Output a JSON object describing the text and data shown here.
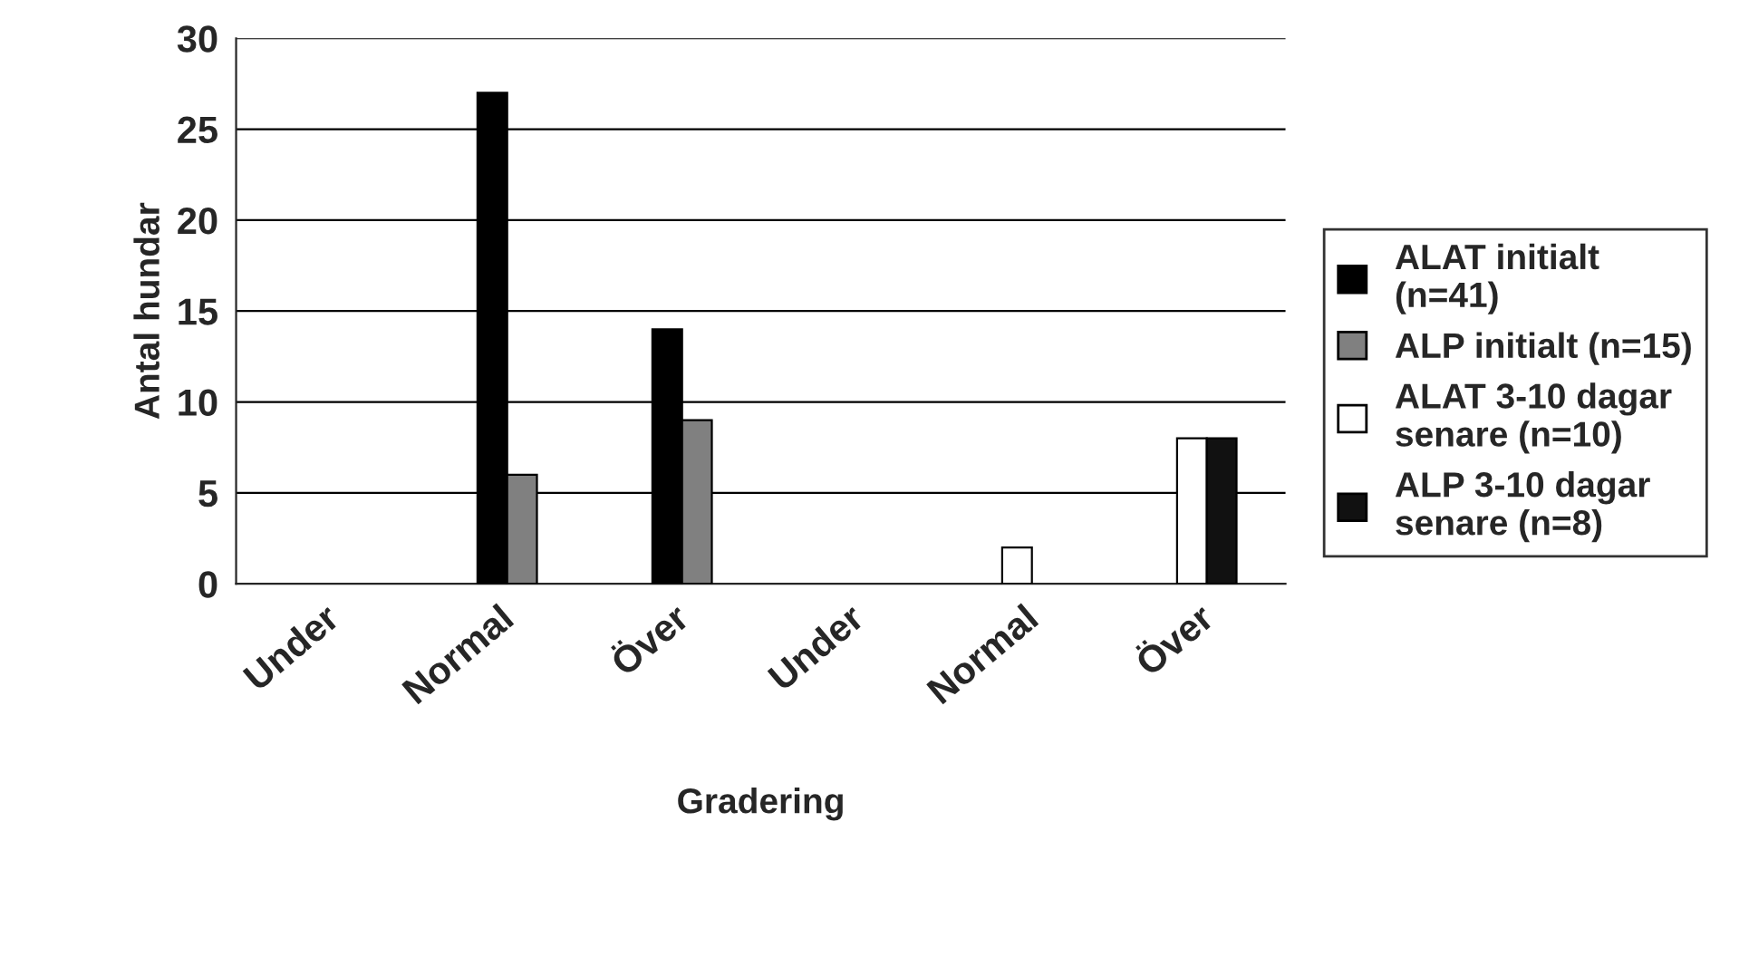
{
  "chart_data": {
    "type": "bar",
    "xlabel": "Gradering",
    "ylabel": "Antal hundar",
    "categories": [
      "Under",
      "Normal",
      "Över",
      "Under",
      "Normal",
      "Över"
    ],
    "series": [
      {
        "name": "ALAT initialt\n(n=41)",
        "color": "#000000",
        "values": [
          null,
          27,
          14,
          null,
          null,
          null
        ]
      },
      {
        "name": "ALP initialt (n=15)",
        "color": "#808080",
        "values": [
          null,
          6,
          9,
          null,
          null,
          null
        ]
      },
      {
        "name": "ALAT 3-10 dagar\nsenare (n=10)",
        "color": "#ffffff",
        "values": [
          null,
          null,
          null,
          null,
          2,
          8
        ]
      },
      {
        "name": "ALP 3-10 dagar\nsenare (n=8)",
        "color": "#111111",
        "values": [
          null,
          null,
          null,
          null,
          null,
          8
        ]
      }
    ],
    "ylim": [
      0,
      30
    ],
    "yticks": [
      0,
      5,
      10,
      15,
      20,
      25,
      30
    ],
    "grid": "y",
    "legend": "right"
  }
}
